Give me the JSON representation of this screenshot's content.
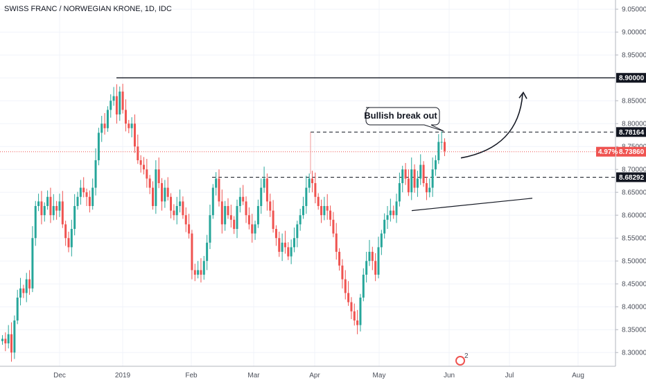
{
  "window": {
    "title": "SWISS FRANC / NORWEGIAN KRONE, 1D, IDC"
  },
  "chart_data": {
    "type": "candlestick",
    "title": "SWISS FRANC / NORWEGIAN KRONE, 1D, IDC",
    "ylim": [
      8.27,
      9.07
    ],
    "y_ticks": [
      "9.05000",
      "9.00000",
      "8.95000",
      "8.90000",
      "8.85000",
      "8.80000",
      "8.75000",
      "8.70000",
      "8.65000",
      "8.60000",
      "8.55000",
      "8.50000",
      "8.45000",
      "8.40000",
      "8.35000",
      "8.30000"
    ],
    "x_ticks": [
      "Dec",
      "2019",
      "Feb",
      "Mar",
      "Apr",
      "May",
      "Jun",
      "Jul",
      "Aug"
    ],
    "series_closes": [
      8.33,
      8.32,
      8.34,
      8.3,
      8.37,
      8.42,
      8.44,
      8.43,
      8.46,
      8.44,
      8.55,
      8.62,
      8.63,
      8.6,
      8.62,
      8.64,
      8.6,
      8.62,
      8.61,
      8.63,
      8.58,
      8.55,
      8.53,
      8.57,
      8.62,
      8.64,
      8.66,
      8.65,
      8.64,
      8.62,
      8.66,
      8.72,
      8.78,
      8.8,
      8.79,
      8.83,
      8.85,
      8.86,
      8.82,
      8.87,
      8.83,
      8.8,
      8.79,
      8.8,
      8.75,
      8.72,
      8.71,
      8.7,
      8.68,
      8.66,
      8.62,
      8.7,
      8.67,
      8.63,
      8.66,
      8.64,
      8.61,
      8.6,
      8.62,
      8.63,
      8.6,
      8.58,
      8.56,
      8.48,
      8.47,
      8.48,
      8.47,
      8.5,
      8.54,
      8.6,
      8.66,
      8.68,
      8.63,
      8.58,
      8.62,
      8.6,
      8.59,
      8.57,
      8.62,
      8.64,
      8.63,
      8.6,
      8.58,
      8.56,
      8.58,
      8.62,
      8.66,
      8.68,
      8.63,
      8.61,
      8.57,
      8.55,
      8.52,
      8.54,
      8.53,
      8.51,
      8.53,
      8.55,
      8.58,
      8.6,
      8.62,
      8.66,
      8.68,
      8.67,
      8.64,
      8.62,
      8.6,
      8.62,
      8.61,
      8.59,
      8.56,
      8.52,
      8.49,
      8.46,
      8.43,
      8.41,
      8.39,
      8.37,
      8.36,
      8.42,
      8.47,
      8.5,
      8.52,
      8.5,
      8.47,
      8.53,
      8.56,
      8.59,
      8.6,
      8.61,
      8.6,
      8.63,
      8.67,
      8.7,
      8.68,
      8.65,
      8.7,
      8.66,
      8.68,
      8.71,
      8.67,
      8.65,
      8.66,
      8.7,
      8.72,
      8.76,
      8.76,
      8.74
    ],
    "horizontal_levels": [
      {
        "value": 8.9,
        "label": "8.90000",
        "style": "solid",
        "color": "#131722"
      },
      {
        "value": 8.78164,
        "label": "8.78164",
        "style": "dashed",
        "color": "#131722"
      },
      {
        "value": 8.7386,
        "label": "8.73860",
        "pct": "4.97%",
        "style": "dotted",
        "color": "#ef5350"
      },
      {
        "value": 8.68292,
        "label": "8.68292",
        "style": "dashed",
        "color": "#131722"
      }
    ],
    "annotations": [
      {
        "type": "callout",
        "text": "Bullish break out"
      },
      {
        "type": "trendline",
        "y_start": 8.61,
        "y_end": 8.637
      },
      {
        "type": "arrow",
        "y_start": 8.725,
        "y_end": 8.865
      }
    ],
    "colors": {
      "up": "#26a69a",
      "down": "#ef5350"
    },
    "watermark_badge": "2"
  }
}
